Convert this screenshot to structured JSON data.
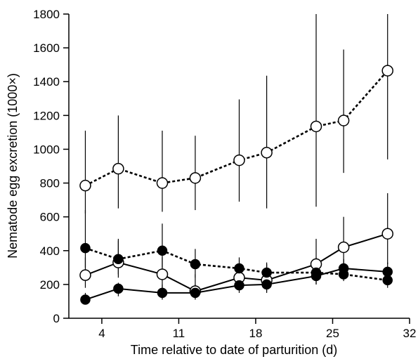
{
  "chart_data": {
    "type": "line",
    "title": "",
    "xlabel": "Time relative to date of parturition (d)",
    "ylabel": "Nematode egg excretion (1000×)",
    "xlim": [
      1,
      32
    ],
    "ylim": [
      0,
      1800
    ],
    "xticks": [
      4,
      11,
      18,
      25,
      32
    ],
    "yticks": [
      0,
      200,
      400,
      600,
      800,
      1000,
      1200,
      1400,
      1600,
      1800
    ],
    "grid": false,
    "series": [
      {
        "marker": "open-circle",
        "line": "dashed",
        "x": [
          2.5,
          5.5,
          9.5,
          12.5,
          16.5,
          19,
          23.5,
          26,
          30
        ],
        "y": [
          785,
          885,
          800,
          830,
          935,
          980,
          1135,
          1170,
          1465
        ],
        "err_low": [
          620,
          650,
          630,
          640,
          690,
          650,
          660,
          860,
          940
        ],
        "err_high": [
          1110,
          1200,
          1110,
          1080,
          1295,
          1435,
          1800,
          1590,
          1800
        ]
      },
      {
        "marker": "open-circle",
        "line": "solid",
        "x": [
          2.5,
          5.5,
          9.5,
          12.5,
          16.5,
          19,
          23.5,
          26,
          30
        ],
        "y": [
          255,
          330,
          260,
          160,
          240,
          225,
          320,
          420,
          500
        ],
        "err_low": [
          180,
          240,
          180,
          120,
          180,
          160,
          200,
          300,
          320
        ],
        "err_high": [
          360,
          460,
          360,
          260,
          300,
          320,
          470,
          600,
          740
        ]
      },
      {
        "marker": "filled-circle",
        "line": "dashed",
        "x": [
          2.5,
          5.5,
          9.5,
          12.5,
          16.5,
          19,
          23.5,
          26,
          30
        ],
        "y": [
          415,
          350,
          400,
          320,
          295,
          270,
          270,
          260,
          225
        ],
        "err_low": [
          300,
          260,
          300,
          240,
          240,
          210,
          220,
          220,
          180
        ],
        "err_high": [
          640,
          470,
          560,
          410,
          360,
          330,
          360,
          350,
          300
        ]
      },
      {
        "marker": "filled-circle",
        "line": "solid",
        "x": [
          2.5,
          5.5,
          9.5,
          12.5,
          16.5,
          19,
          23.5,
          26,
          30
        ],
        "y": [
          110,
          175,
          150,
          150,
          195,
          200,
          250,
          295,
          275
        ],
        "err_low": [
          90,
          130,
          110,
          110,
          150,
          150,
          200,
          240,
          220
        ],
        "err_high": [
          150,
          210,
          200,
          200,
          250,
          250,
          300,
          350,
          330
        ]
      }
    ]
  }
}
